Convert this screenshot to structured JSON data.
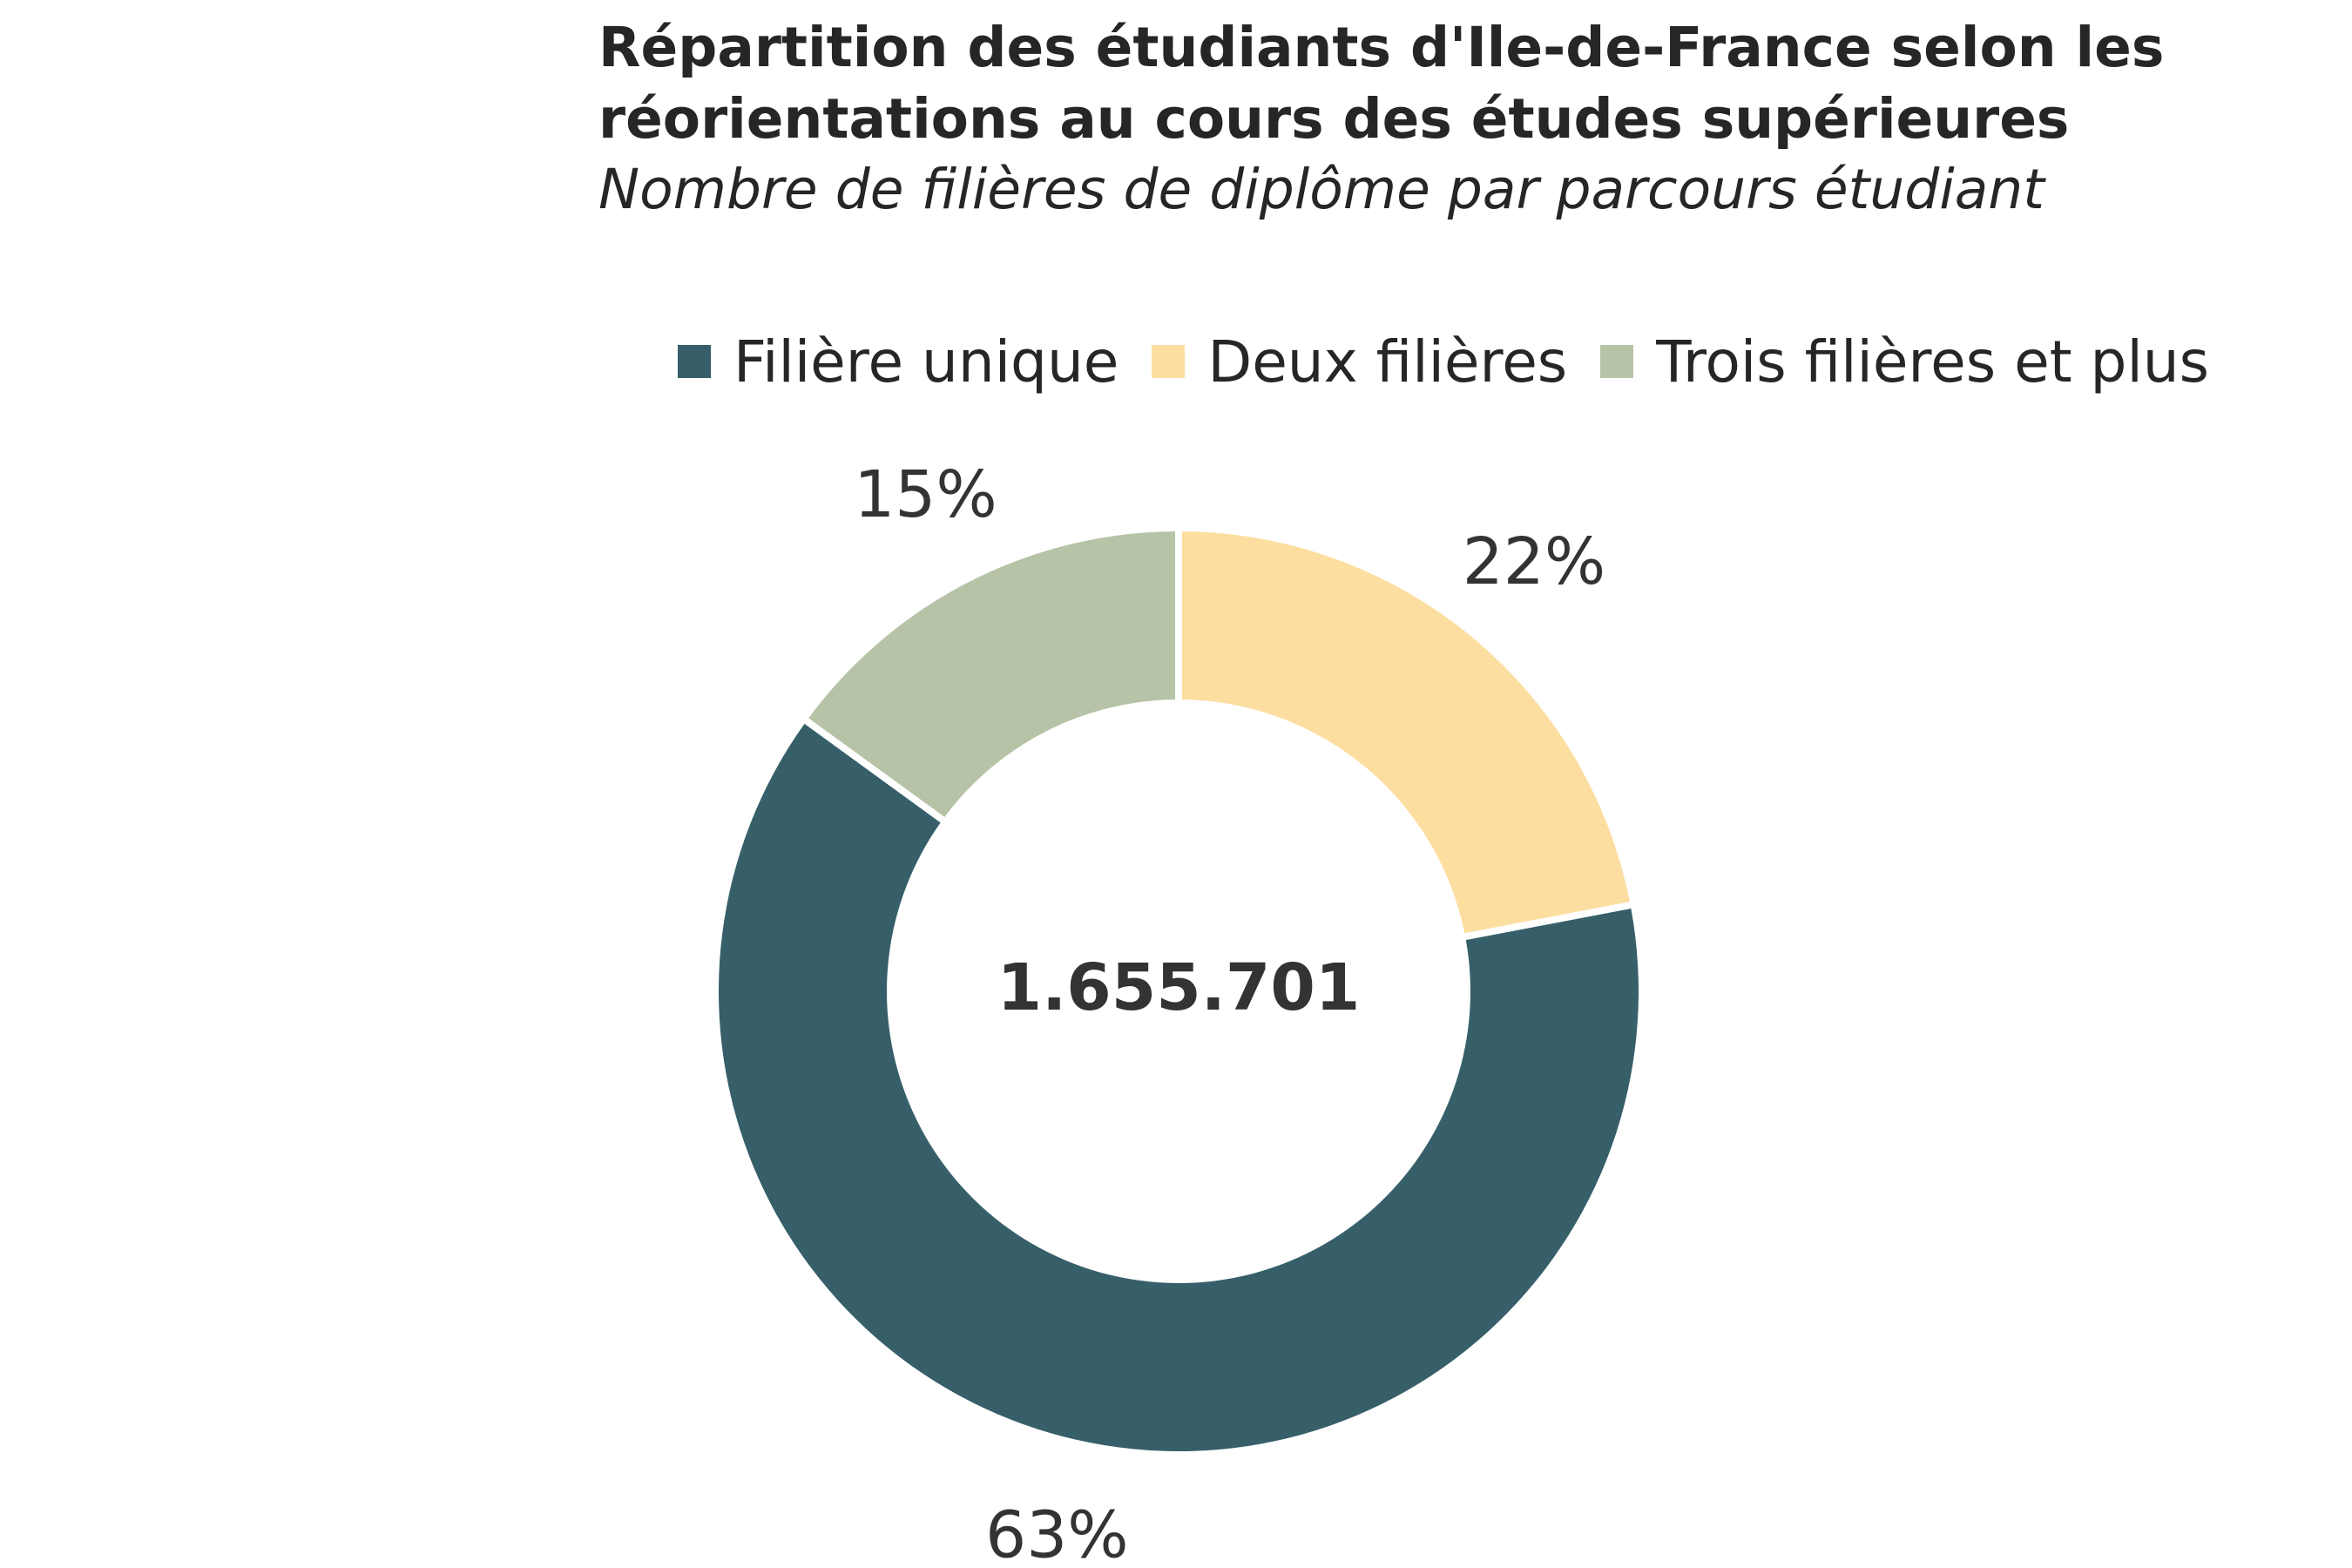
{
  "chart_data": {
    "type": "pie",
    "title_lines": [
      "Répartition des étudiants d'Ile-de-France selon les",
      "réorientations au cours des études supérieures"
    ],
    "subtitle": "Nombre de filières de diplôme par parcours étudiant",
    "center_label": "1.655.701",
    "categories": [
      "Filière unique",
      "Deux filières",
      "Trois filières et plus"
    ],
    "values": [
      63,
      22,
      15
    ],
    "value_labels": [
      "63%",
      "22%",
      "15%"
    ],
    "colors": [
      "#365f69",
      "#fcdea1",
      "#b7c3a6"
    ],
    "slice_order": [
      "Deux filières",
      "Filière unique",
      "Trois filières et plus"
    ],
    "donut": true,
    "legend_position": "top"
  }
}
